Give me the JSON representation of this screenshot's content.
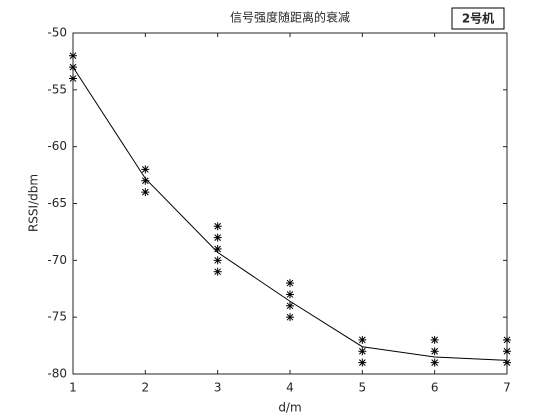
{
  "chart_data": {
    "type": "scatter",
    "title": "信号强度随距离的衰减",
    "annotation": "2号机",
    "xlabel": "d/m",
    "ylabel": "RSSI/dbm",
    "xlim": [
      1,
      7
    ],
    "xticks": [
      1,
      2,
      3,
      4,
      5,
      6,
      7
    ],
    "ylim": [
      -80,
      -50
    ],
    "yticks": [
      -80,
      -75,
      -70,
      -65,
      -60,
      -55,
      -50
    ],
    "series": [
      {
        "marker": "*",
        "color": "#000000",
        "x": [
          1,
          1,
          1,
          2,
          2,
          2,
          3,
          3,
          3,
          3,
          3,
          4,
          4,
          4,
          4,
          5,
          5,
          5,
          6,
          6,
          6,
          7,
          7,
          7
        ],
        "values": [
          -52,
          -53,
          -54,
          -62,
          -63,
          -64,
          -67,
          -68,
          -69,
          -70,
          -71,
          -72,
          -73,
          -74,
          -75,
          -77,
          -78,
          -79,
          -77,
          -78,
          -79,
          -77,
          -78,
          -79
        ]
      },
      {
        "marker": "line",
        "color": "#000000",
        "x": [
          1,
          2,
          3,
          4,
          5,
          6,
          7
        ],
        "values": [
          -53,
          -62.8,
          -69.3,
          -73.6,
          -77.6,
          -78.5,
          -78.8
        ]
      }
    ]
  }
}
